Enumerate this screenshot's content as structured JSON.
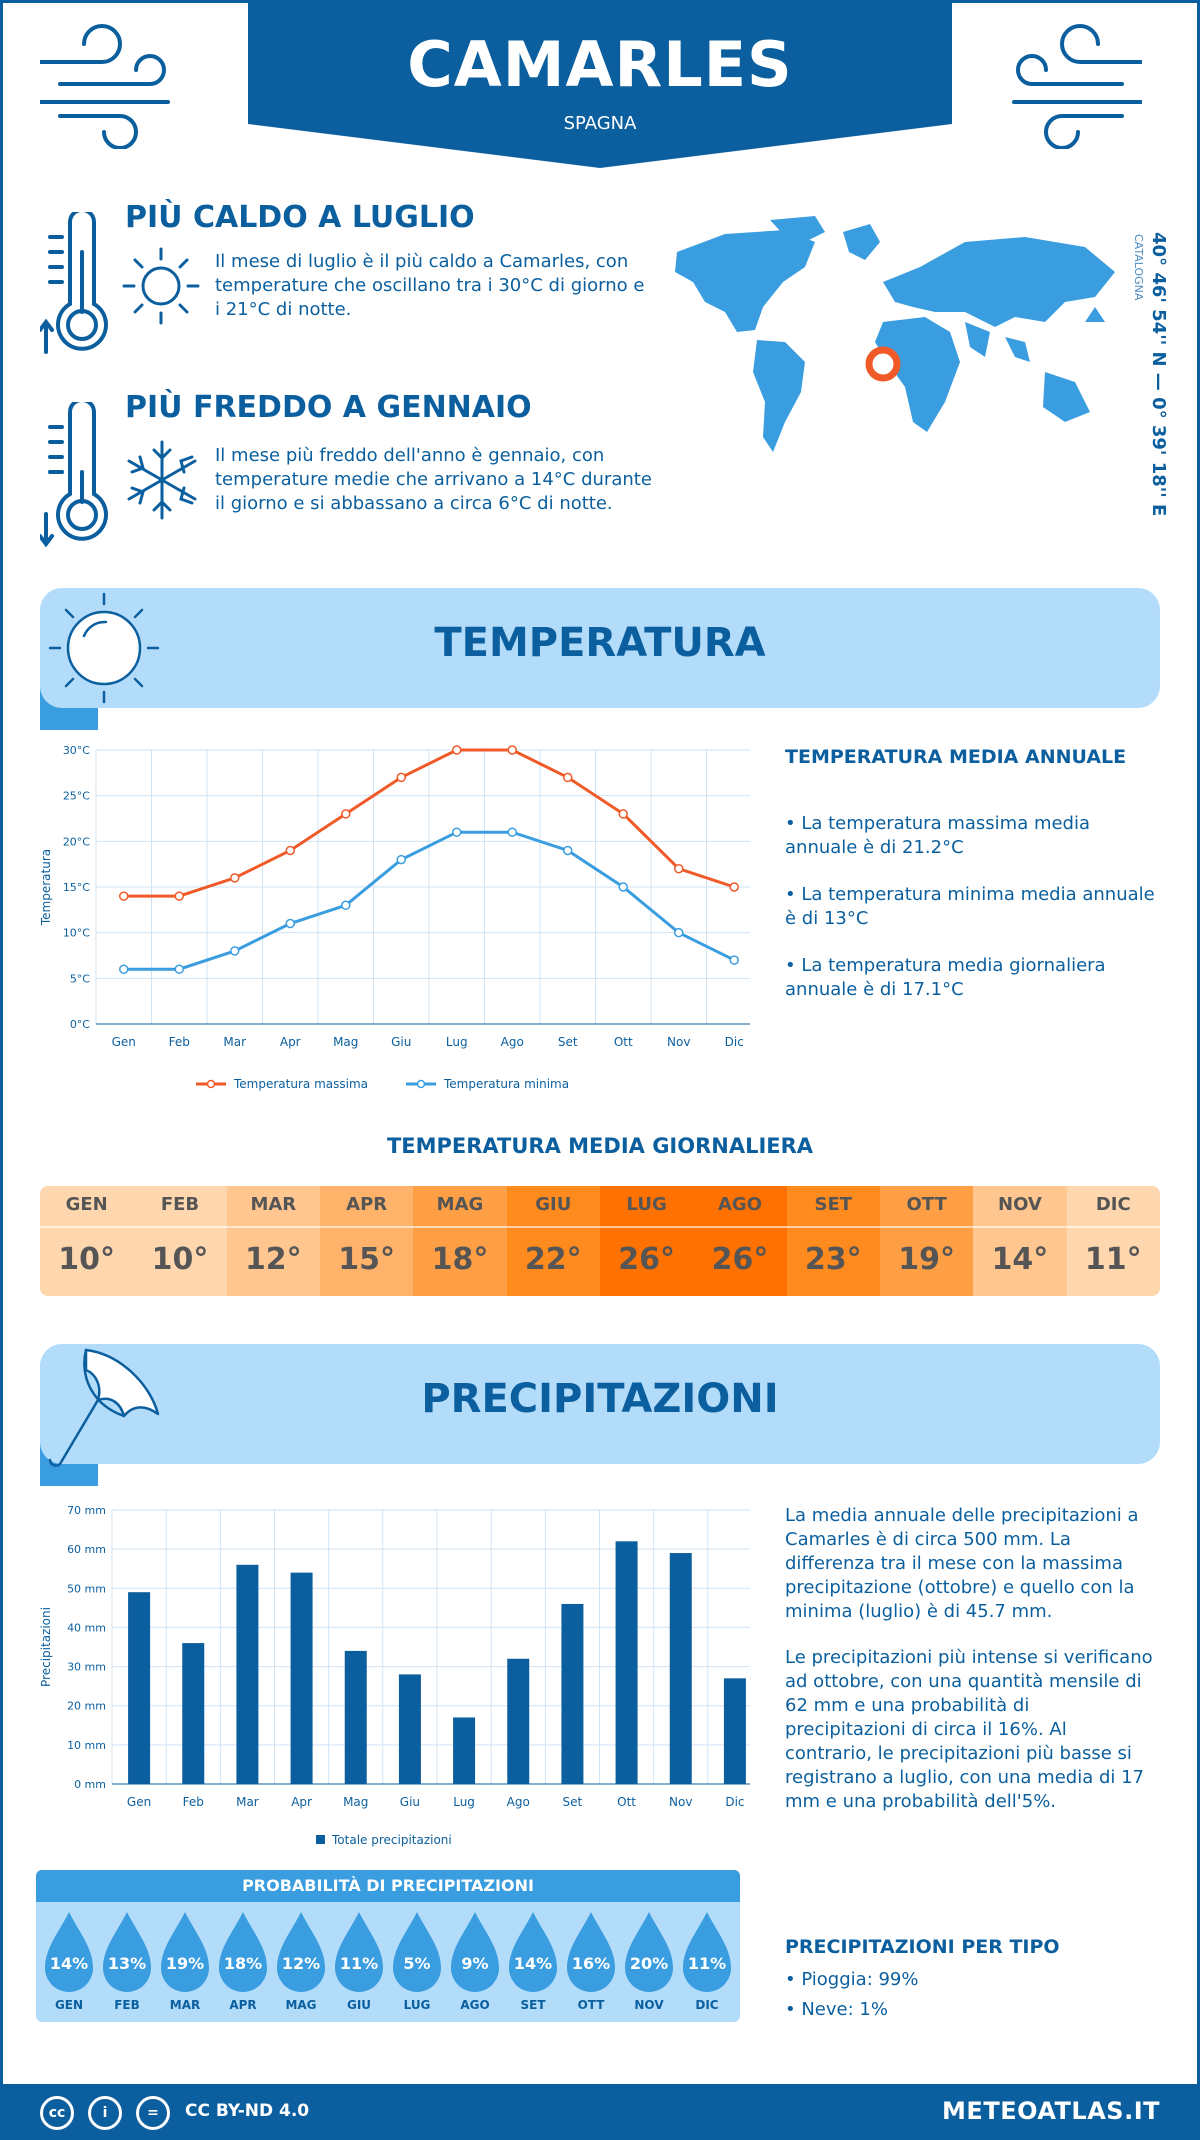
{
  "header": {
    "city": "CAMARLES",
    "country": "SPAGNA"
  },
  "facts": {
    "hottest": {
      "title": "PIÙ CALDO A LUGLIO",
      "text": "Il mese di luglio è il più caldo a Camarles, con temperature che oscillano tra i 30°C di giorno e i 21°C di notte."
    },
    "coldest": {
      "title": "PIÙ FREDDO A GENNAIO",
      "text": "Il mese più freddo dell'anno è gennaio, con temperature medie che arrivano a 14°C durante il giorno e si abbassano a circa 6°C di notte."
    }
  },
  "location": {
    "coords": "40° 46' 54'' N — 0° 39' 18'' E",
    "region": "CATALOGNA"
  },
  "temperature_section": {
    "title": "TEMPERATURA",
    "annual_title": "TEMPERATURA MEDIA ANNUALE",
    "annual": [
      "• La temperatura massima media annuale è di 21.2°C",
      "• La temperatura minima media annuale è di 13°C",
      "• La temperatura media giornaliera annuale è di 17.1°C"
    ]
  },
  "daily_section": {
    "title": "TEMPERATURA MEDIA GIORNALIERA",
    "months": [
      "GEN",
      "FEB",
      "MAR",
      "APR",
      "MAG",
      "GIU",
      "LUG",
      "AGO",
      "SET",
      "OTT",
      "NOV",
      "DIC"
    ],
    "values": [
      "10°",
      "10°",
      "12°",
      "15°",
      "18°",
      "22°",
      "26°",
      "26°",
      "23°",
      "19°",
      "14°",
      "11°"
    ],
    "colors": [
      "#ffd7ae",
      "#ffd7ae",
      "#ffc690",
      "#ffb36a",
      "#ff9f45",
      "#ff8a1e",
      "#ff7100",
      "#ff7100",
      "#ff8a1e",
      "#ff9f45",
      "#ffc690",
      "#ffd7ae"
    ]
  },
  "precip_section": {
    "title": "PRECIPITAZIONI",
    "text1": "La media annuale delle precipitazioni a Camarles è di circa 500 mm. La differenza tra il mese con la massima precipitazione (ottobre) e quello con la minima (luglio) è di 45.7 mm.",
    "text2": "Le precipitazioni più intense si verificano ad ottobre, con una quantità mensile di 62 mm e una probabilità di precipitazioni di circa il 16%. Al contrario, le precipitazioni più basse si registrano a luglio, con una media di 17 mm e una probabilità dell'5%.",
    "prob_title": "PROBABILITÀ DI PRECIPITAZIONI",
    "prob_months": [
      "GEN",
      "FEB",
      "MAR",
      "APR",
      "MAG",
      "GIU",
      "LUG",
      "AGO",
      "SET",
      "OTT",
      "NOV",
      "DIC"
    ],
    "prob_values": [
      "14%",
      "13%",
      "19%",
      "18%",
      "12%",
      "11%",
      "5%",
      "9%",
      "14%",
      "16%",
      "20%",
      "11%"
    ],
    "type_title": "PRECIPITAZIONI PER TIPO",
    "types": [
      "• Pioggia: 99%",
      "• Neve: 1%"
    ]
  },
  "chart_data": [
    {
      "type": "line",
      "categories": [
        "Gen",
        "Feb",
        "Mar",
        "Apr",
        "Mag",
        "Giu",
        "Lug",
        "Ago",
        "Set",
        "Ott",
        "Nov",
        "Dic"
      ],
      "series": [
        {
          "name": "Temperatura massima",
          "values": [
            14,
            14,
            16,
            19,
            23,
            27,
            30,
            30,
            27,
            23,
            17,
            15
          ],
          "color": "#f05a28"
        },
        {
          "name": "Temperatura minima",
          "values": [
            6,
            6,
            8,
            11,
            13,
            18,
            21,
            21,
            19,
            15,
            10,
            7
          ],
          "color": "#3a9de0"
        }
      ],
      "ylabel": "Temperatura",
      "ylim": [
        0,
        30
      ],
      "yticks": [
        "0°C",
        "5°C",
        "10°C",
        "15°C",
        "20°C",
        "25°C",
        "30°C"
      ],
      "grid": true,
      "legend": "bottom"
    },
    {
      "type": "bar",
      "categories": [
        "Gen",
        "Feb",
        "Mar",
        "Apr",
        "Mag",
        "Giu",
        "Lug",
        "Ago",
        "Set",
        "Ott",
        "Nov",
        "Dic"
      ],
      "series": [
        {
          "name": "Totale precipitazioni",
          "values": [
            49,
            36,
            56,
            54,
            34,
            28,
            17,
            32,
            46,
            62,
            59,
            27
          ],
          "color": "#0b5f9e"
        }
      ],
      "ylabel": "Precipitazioni",
      "ylim": [
        0,
        70
      ],
      "yticks": [
        "0 mm",
        "10 mm",
        "20 mm",
        "30 mm",
        "40 mm",
        "50 mm",
        "60 mm",
        "70 mm"
      ],
      "grid": true,
      "legend": "bottom"
    }
  ],
  "footer": {
    "license": "CC BY-ND 4.0",
    "brand": "METEOATLAS.IT"
  }
}
